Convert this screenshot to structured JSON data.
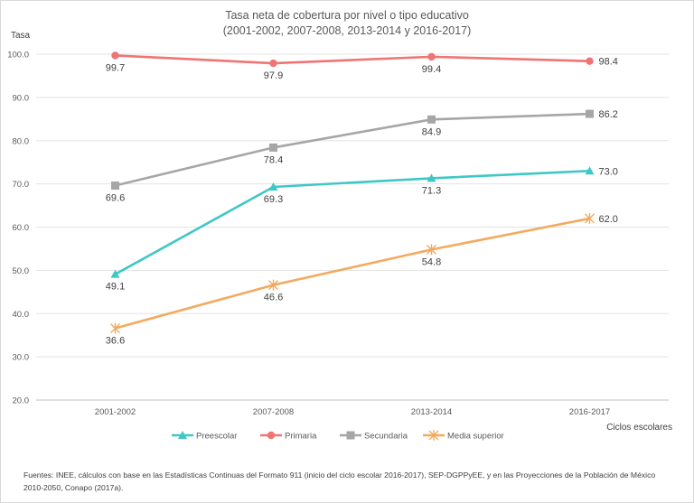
{
  "chart_data": {
    "type": "line",
    "title_lines": [
      "Tasa neta de cobertura por nivel  o tipo educativo",
      "(2001-2002, 2007-2008, 2013-2014 y 2016-2017)"
    ],
    "ylabel": "Tasa",
    "xlabel": "Ciclos escolares",
    "categories": [
      "2001-2002",
      "2007-2008",
      "2013-2014",
      "2016-2017"
    ],
    "ylim": [
      20,
      100
    ],
    "yticks": [
      "100.0",
      "90.0",
      "80.0",
      "70.0",
      "60.0",
      "50.0",
      "40.0",
      "30.0",
      "20.0"
    ],
    "grid": true,
    "legend_position": "bottom",
    "series": [
      {
        "name": "Preescolar",
        "values": [
          49.1,
          69.3,
          71.3,
          73.0
        ],
        "labels": [
          "49.1",
          "69.3",
          "71.3",
          "73.0"
        ],
        "color": "#3ec8c5",
        "marker": "triangle"
      },
      {
        "name": "Primaria",
        "values": [
          99.7,
          97.9,
          99.4,
          98.4
        ],
        "labels": [
          "99.7",
          "97.9",
          "99.4",
          "98.4"
        ],
        "color": "#f07474",
        "marker": "circle"
      },
      {
        "name": "Secundaria",
        "values": [
          69.6,
          78.4,
          84.9,
          86.2
        ],
        "labels": [
          "69.6",
          "78.4",
          "84.9",
          "86.2"
        ],
        "color": "#a6a6a6",
        "marker": "square"
      },
      {
        "name": "Media superior",
        "values": [
          36.6,
          46.6,
          54.8,
          62.0
        ],
        "labels": [
          "36.6",
          "46.6",
          "54.8",
          "62.0"
        ],
        "color": "#f4aa5e",
        "marker": "star"
      }
    ]
  },
  "source_note": "Fuentes: INEE, cálculos con base en las Estadísticas Continuas del Formato 911 (inicio del ciclo escolar 2016-2017), SEP-DGPPyEE, y en las Proyecciones de la Población de México 2010-2050, Conapo (2017a)."
}
